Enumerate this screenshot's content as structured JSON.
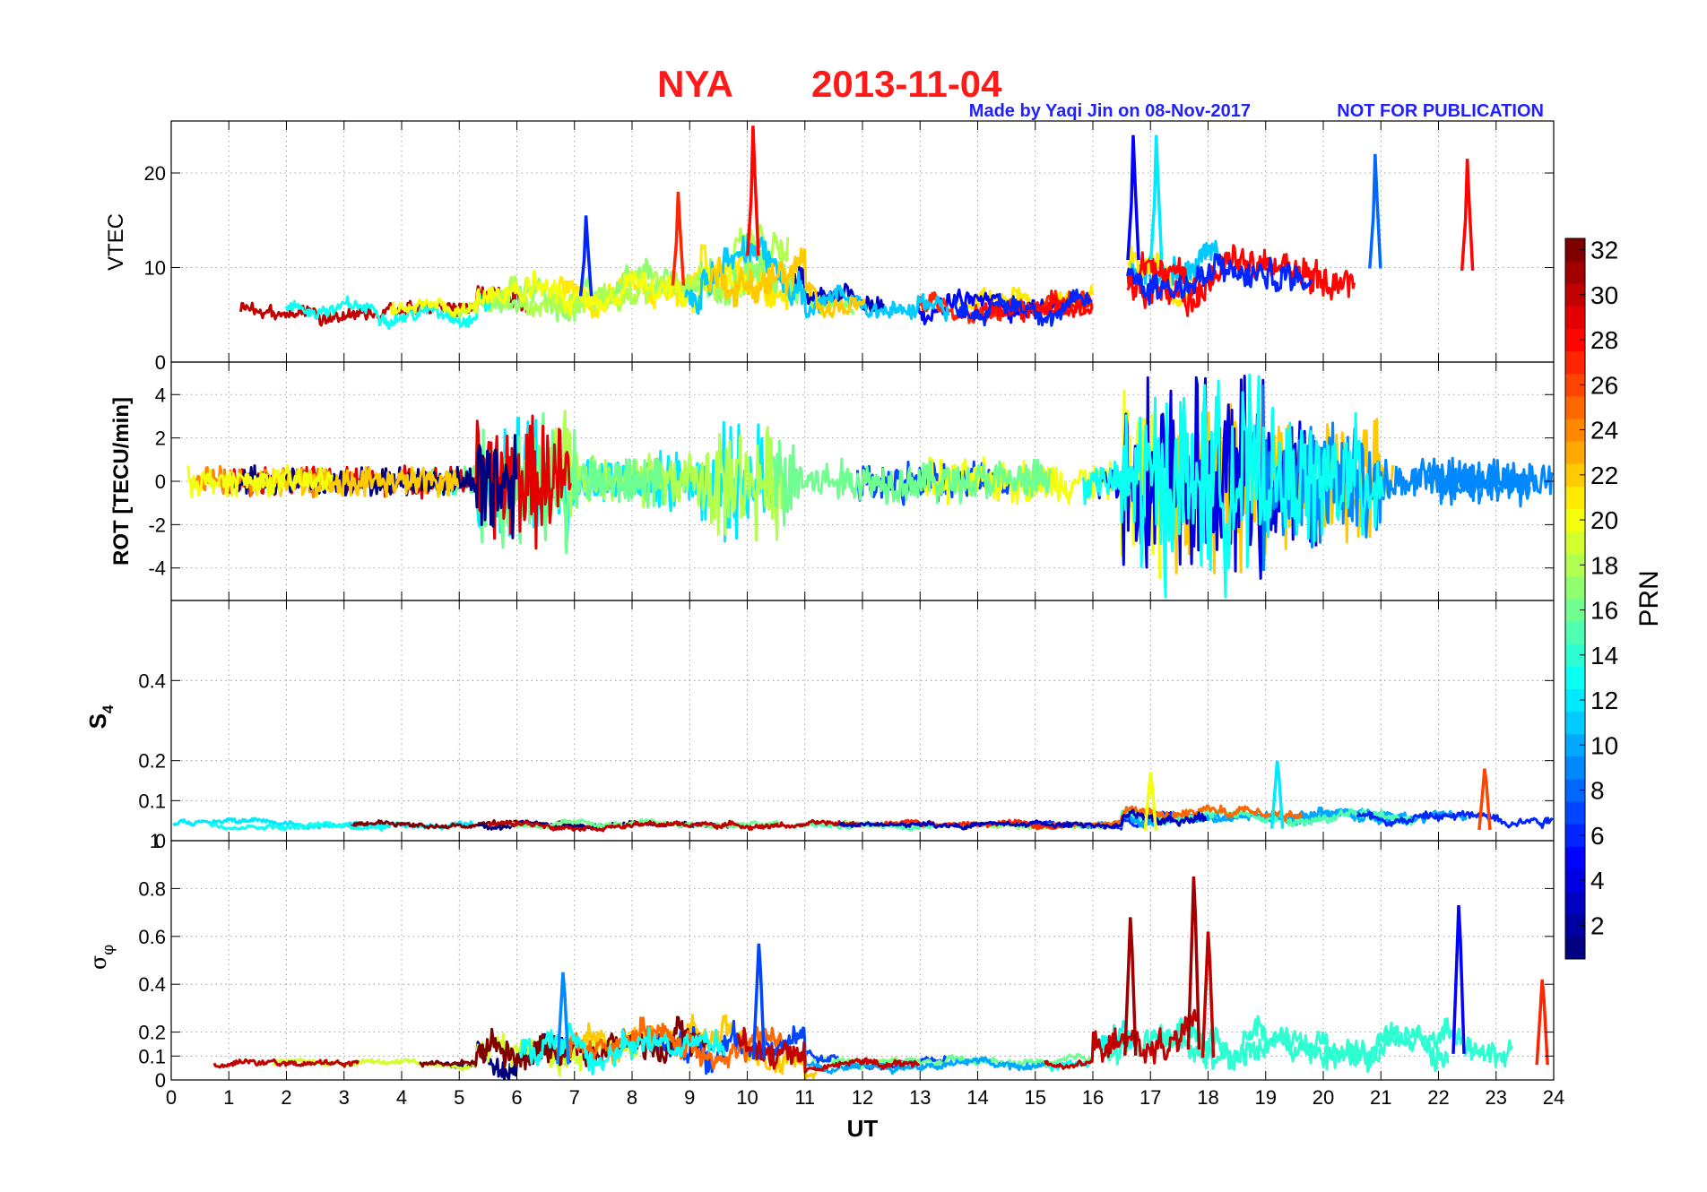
{
  "header": {
    "station": "NYA",
    "date": "2013-11-04",
    "credit": "Made by Yaqi Jin on 08-Nov-2017",
    "notice": "NOT FOR PUBLICATION"
  },
  "colors": {
    "title": "#ff1a1a",
    "credit": "#1f1fff",
    "axis": "#000000",
    "grid": "#8c8c8c"
  },
  "colorbar": {
    "label": "PRN",
    "range": [
      1,
      32
    ],
    "ticks": [
      "2",
      "4",
      "6",
      "8",
      "10",
      "12",
      "14",
      "16",
      "18",
      "20",
      "22",
      "24",
      "26",
      "28",
      "30",
      "32"
    ],
    "colormap": "jet",
    "levels": 32
  },
  "chart_data": [
    {
      "type": "line",
      "id": "vtec",
      "ylabel": "VTEC",
      "xlim": [
        0,
        24
      ],
      "ylim": [
        0,
        25.5
      ],
      "yticks": [
        "0",
        "10",
        "20"
      ],
      "ytick_values": [
        0,
        10,
        20
      ],
      "x_ticks": [
        "0",
        "1",
        "2",
        "3",
        "4",
        "5",
        "6",
        "7",
        "8",
        "9",
        "10",
        "11",
        "12",
        "13",
        "14",
        "15",
        "16",
        "17",
        "18",
        "19",
        "20",
        "21",
        "22",
        "23",
        "24"
      ],
      "grid": true,
      "activity": [
        {
          "from": 0,
          "to": 5.3,
          "base": 5.5,
          "amp": 2.5
        },
        {
          "from": 5.3,
          "to": 9.2,
          "base": 7.0,
          "amp": 5.0
        },
        {
          "from": 9.2,
          "to": 11.0,
          "base": 9.0,
          "amp": 7.0
        },
        {
          "from": 11.0,
          "to": 16.0,
          "base": 6.0,
          "amp": 3.5
        },
        {
          "from": 16.6,
          "to": 24.0,
          "base": 9.0,
          "amp": 6.0
        }
      ],
      "peaks": [
        {
          "x": 10.1,
          "y": 25.0,
          "prn": 28
        },
        {
          "x": 16.7,
          "y": 24.0,
          "prn": 5
        },
        {
          "x": 17.1,
          "y": 24.0,
          "prn": 12
        },
        {
          "x": 20.9,
          "y": 22.0,
          "prn": 8
        },
        {
          "x": 22.5,
          "y": 21.5,
          "prn": 28
        },
        {
          "x": 8.8,
          "y": 18.0,
          "prn": 27
        },
        {
          "x": 7.2,
          "y": 15.5,
          "prn": 6
        }
      ]
    },
    {
      "type": "line",
      "id": "rot",
      "ylabel": "ROT [TECU/min]",
      "xlim": [
        0,
        24
      ],
      "ylim": [
        -5.5,
        5.5
      ],
      "yticks": [
        "-4",
        "-2",
        "0",
        "2",
        "4"
      ],
      "ytick_values": [
        -4,
        -2,
        0,
        2,
        4
      ],
      "grid": true,
      "activity": [
        {
          "from": 0,
          "to": 5.3,
          "amp": 0.8
        },
        {
          "from": 5.3,
          "to": 7.0,
          "amp": 3.5
        },
        {
          "from": 7.0,
          "to": 9.2,
          "amp": 1.5
        },
        {
          "from": 9.2,
          "to": 11.0,
          "amp": 3.0
        },
        {
          "from": 11.0,
          "to": 16.0,
          "amp": 1.2
        },
        {
          "from": 16.0,
          "to": 16.5,
          "amp": 1.0
        },
        {
          "from": 16.5,
          "to": 19.0,
          "amp": 5.5
        },
        {
          "from": 19.0,
          "to": 21.0,
          "amp": 3.5
        },
        {
          "from": 21.0,
          "to": 24.0,
          "amp": 1.2
        }
      ]
    },
    {
      "type": "line",
      "id": "s4",
      "ylabel": "S4",
      "xlim": [
        0,
        24
      ],
      "ylim": [
        0,
        0.6
      ],
      "yticks": [
        "0",
        "0.1",
        "0.2",
        "0.4"
      ],
      "ytick_values": [
        0,
        0.1,
        0.2,
        0.4
      ],
      "extra_tick": {
        "label": "1",
        "value": 0
      },
      "grid": true,
      "activity": [
        {
          "from": 0,
          "to": 16.5,
          "base": 0.04,
          "amp": 0.02
        },
        {
          "from": 16.5,
          "to": 24,
          "base": 0.06,
          "amp": 0.04
        }
      ],
      "peaks": [
        {
          "x": 19.2,
          "y": 0.2,
          "prn": 12
        },
        {
          "x": 22.8,
          "y": 0.18,
          "prn": 26
        },
        {
          "x": 17.0,
          "y": 0.17,
          "prn": 20
        }
      ]
    },
    {
      "type": "line",
      "id": "sigma_phi",
      "ylabel": "σφ",
      "xlim": [
        0,
        24
      ],
      "ylim": [
        0,
        1.0
      ],
      "yticks": [
        "0",
        "0.1",
        "0.2",
        "0.4",
        "0.6",
        "0.8"
      ],
      "ytick_values": [
        0,
        0.1,
        0.2,
        0.4,
        0.6,
        0.8
      ],
      "xlabel": "UT",
      "grid": true,
      "activity": [
        {
          "from": 0,
          "to": 5.3,
          "base": 0.07,
          "amp": 0.04
        },
        {
          "from": 5.3,
          "to": 9.2,
          "base": 0.15,
          "amp": 0.2
        },
        {
          "from": 9.2,
          "to": 11.0,
          "base": 0.15,
          "amp": 0.2
        },
        {
          "from": 11.0,
          "to": 16.0,
          "base": 0.07,
          "amp": 0.05
        },
        {
          "from": 16.0,
          "to": 24.0,
          "base": 0.15,
          "amp": 0.2
        }
      ],
      "peaks": [
        {
          "x": 17.75,
          "y": 0.85,
          "prn": 31
        },
        {
          "x": 22.35,
          "y": 0.73,
          "prn": 5
        },
        {
          "x": 16.65,
          "y": 0.68,
          "prn": 31
        },
        {
          "x": 18.0,
          "y": 0.62,
          "prn": 30
        },
        {
          "x": 10.2,
          "y": 0.57,
          "prn": 7
        },
        {
          "x": 6.8,
          "y": 0.45,
          "prn": 9
        },
        {
          "x": 23.8,
          "y": 0.42,
          "prn": 27
        }
      ]
    }
  ]
}
